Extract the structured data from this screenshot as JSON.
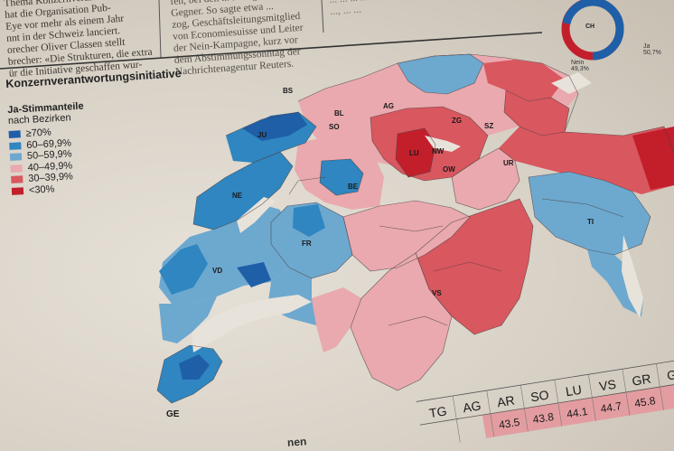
{
  "article_lines_col1": [
    "Thema Konzernverantwor-",
    "hat die Organisation Pub-",
    "Eye vor mehr als einem Jahr",
    "nnt in der Schweiz lanciert.",
    "orecher Oliver Classen stellt",
    "brecher: «Die Strukturen, die extra",
    "ür die Initiative geschaffen wur-"
  ],
  "article_lines_col2": [
    "fen, bei den ... so sagte er ...",
    "Gegner. So sagte etwa ...",
    "zog, Geschäftsleitungsmitglied",
    "von Economiesuisse und Leiter",
    "der Nein-Kampagne, kurz vor",
    "dem Abstimmungssonntag der",
    "Nachrichtenagentur Reuters."
  ],
  "article_lines_col3": [
    "... ... ... ...",
    "..., ... ..."
  ],
  "map_title": "Konzernverantwortungsinitiative",
  "legend": {
    "heading": "Ja-Stimmanteile",
    "subheading": "nach Bezirken",
    "items": [
      {
        "label": "≥70%",
        "color": "#1f5fa8"
      },
      {
        "label": "60–69,9%",
        "color": "#2f86c0"
      },
      {
        "label": "50–59,9%",
        "color": "#6da8cf"
      },
      {
        "label": "40–49,9%",
        "color": "#e9a9ae"
      },
      {
        "label": "30–39,9%",
        "color": "#d9575f"
      },
      {
        "label": "<30%",
        "color": "#c21f2b"
      }
    ]
  },
  "canton_labels": [
    "BS",
    "BL",
    "SO",
    "AG",
    "JU",
    "NE",
    "BE",
    "FR",
    "VD",
    "GE",
    "LU",
    "NW",
    "OW",
    "UR",
    "SZ",
    "ZG",
    "TI",
    "VS"
  ],
  "donut": {
    "label": "CH",
    "left_caption": "Nein",
    "left_value": "49,3%",
    "right_caption": "Ja",
    "right_value": "50,7%"
  },
  "results_table": {
    "codes": [
      "TG",
      "AG",
      "AR",
      "SO",
      "LU",
      "VS",
      "GR",
      "GL"
    ],
    "values": [
      "",
      "",
      "43.5",
      "43.8",
      "44.1",
      "44.7",
      "45.8",
      ""
    ]
  },
  "footer_fragment": "nen"
}
